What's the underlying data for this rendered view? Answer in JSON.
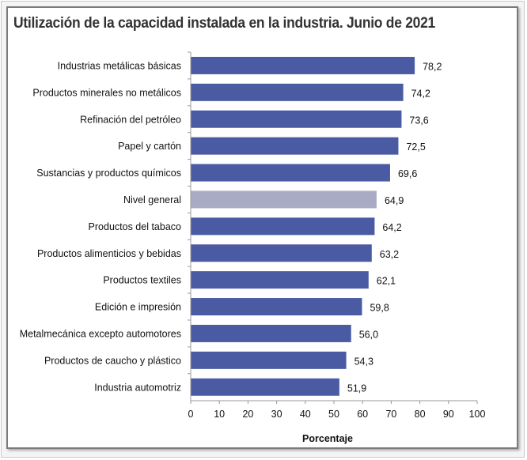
{
  "chart_data": {
    "type": "bar",
    "orientation": "horizontal",
    "title": "Utilización de la capacidad instalada en la industria. Junio de 2021",
    "xlabel": "Porcentaje",
    "ylabel": "",
    "xlim": [
      0,
      100
    ],
    "xticks": [
      0,
      10,
      20,
      30,
      40,
      50,
      60,
      70,
      80,
      90,
      100
    ],
    "grid": false,
    "categories": [
      "Industrias metálicas básicas",
      "Productos minerales no metálicos",
      "Refinación del petróleo",
      "Papel y cartón",
      "Sustancias y productos químicos",
      "Nivel general",
      "Productos del tabaco",
      "Productos alimenticios y bebidas",
      "Productos textiles",
      "Edición e impresión",
      "Metalmecánica excepto automotores",
      "Productos de caucho y plástico",
      "Industria automotriz"
    ],
    "values": [
      78.2,
      74.2,
      73.6,
      72.5,
      69.6,
      64.9,
      64.2,
      63.2,
      62.1,
      59.8,
      56.0,
      54.3,
      51.9
    ],
    "value_labels": [
      "78,2",
      "74,2",
      "73,6",
      "72,5",
      "69,6",
      "64,9",
      "64,2",
      "63,2",
      "62,1",
      "59,8",
      "56,0",
      "54,3",
      "51,9"
    ],
    "colors": {
      "bar": "#4a5ba3",
      "highlight": "#a9abc5",
      "highlight_category": "Nivel general"
    }
  }
}
